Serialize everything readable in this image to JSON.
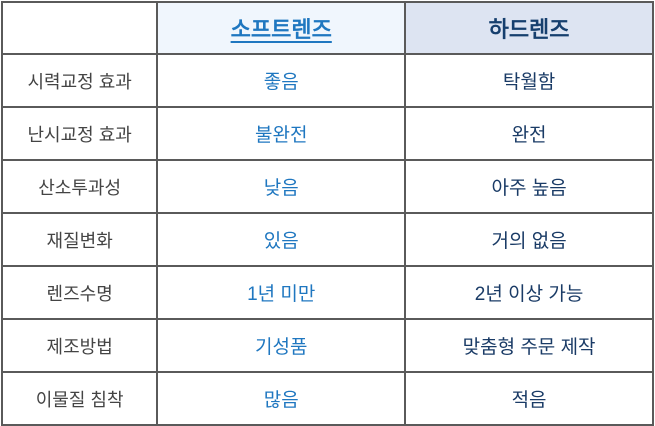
{
  "header": {
    "corner": "",
    "soft": "소프트렌즈",
    "hard": "하드렌즈"
  },
  "rows": [
    {
      "label": "시력교정 효과",
      "soft": "좋음",
      "hard": "탁월함"
    },
    {
      "label": "난시교정 효과",
      "soft": "불완전",
      "hard": "완전"
    },
    {
      "label": "산소투과성",
      "soft": "낮음",
      "hard": "아주 높음"
    },
    {
      "label": "재질변화",
      "soft": "있음",
      "hard": "거의 없음"
    },
    {
      "label": "렌즈수명",
      "soft": "1년 미만",
      "hard": "2년 이상 가능"
    },
    {
      "label": "제조방법",
      "soft": "기성품",
      "hard": "맞춤형 주문 제작"
    },
    {
      "label": "이물질 침착",
      "soft": "많음",
      "hard": "적음"
    }
  ],
  "colors": {
    "soft_accent": "#1f77c0",
    "hard_accent": "#163f6e",
    "soft_header_bg": "#f0f6fd",
    "hard_header_bg": "#dde4f2"
  }
}
